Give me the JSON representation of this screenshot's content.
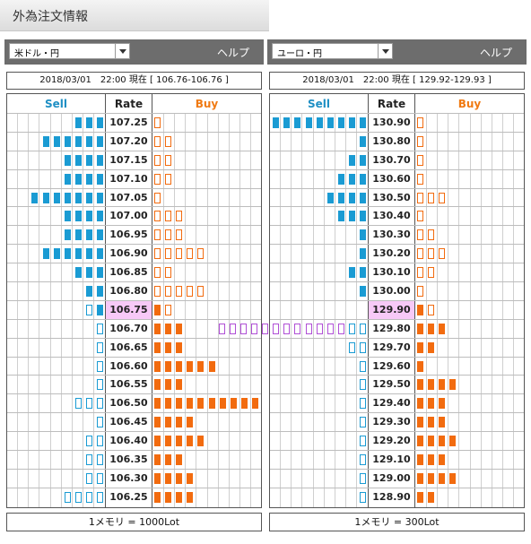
{
  "page": {
    "title": "外為注文情報"
  },
  "panels": [
    {
      "pair": "米ドル・円",
      "help": "ヘルプ",
      "info": "2018/03/01　22:00 現在 [ 106.76-106.76 ]",
      "headers": {
        "sell": "Sell",
        "rate": "Rate",
        "buy": "Buy"
      },
      "current_rate": "106.75",
      "rows": [
        {
          "rate": "107.25",
          "sell": 3,
          "sell_hollow": false,
          "buy": 1,
          "buy_hollow": true
        },
        {
          "rate": "107.20",
          "sell": 6,
          "sell_hollow": false,
          "buy": 2,
          "buy_hollow": true
        },
        {
          "rate": "107.15",
          "sell": 4,
          "sell_hollow": false,
          "buy": 2,
          "buy_hollow": true
        },
        {
          "rate": "107.10",
          "sell": 4,
          "sell_hollow": false,
          "buy": 2,
          "buy_hollow": true
        },
        {
          "rate": "107.05",
          "sell": 7,
          "sell_hollow": false,
          "buy": 1,
          "buy_hollow": true
        },
        {
          "rate": "107.00",
          "sell": 4,
          "sell_hollow": false,
          "buy": 3,
          "buy_hollow": true
        },
        {
          "rate": "106.95",
          "sell": 4,
          "sell_hollow": false,
          "buy": 3,
          "buy_hollow": true
        },
        {
          "rate": "106.90",
          "sell": 6,
          "sell_hollow": false,
          "buy": 5,
          "buy_hollow": true
        },
        {
          "rate": "106.85",
          "sell": 3,
          "sell_hollow": false,
          "buy": 2,
          "buy_hollow": true
        },
        {
          "rate": "106.80",
          "sell": 2,
          "sell_hollow": false,
          "buy": 5,
          "buy_hollow": true
        },
        {
          "rate": "106.75",
          "sell": 2,
          "sell_hollow": "mixed",
          "buy": 2,
          "buy_hollow": "mixed"
        },
        {
          "rate": "106.70",
          "sell": 1,
          "sell_hollow": true,
          "buy": 3,
          "buy_hollow": false
        },
        {
          "rate": "106.65",
          "sell": 1,
          "sell_hollow": true,
          "buy": 3,
          "buy_hollow": false
        },
        {
          "rate": "106.60",
          "sell": 1,
          "sell_hollow": true,
          "buy": 6,
          "buy_hollow": false
        },
        {
          "rate": "106.55",
          "sell": 1,
          "sell_hollow": true,
          "buy": 3,
          "buy_hollow": false
        },
        {
          "rate": "106.50",
          "sell": 3,
          "sell_hollow": true,
          "buy": 10,
          "buy_hollow": false
        },
        {
          "rate": "106.45",
          "sell": 1,
          "sell_hollow": true,
          "buy": 4,
          "buy_hollow": false
        },
        {
          "rate": "106.40",
          "sell": 2,
          "sell_hollow": true,
          "buy": 5,
          "buy_hollow": false
        },
        {
          "rate": "106.35",
          "sell": 2,
          "sell_hollow": true,
          "buy": 3,
          "buy_hollow": false
        },
        {
          "rate": "106.30",
          "sell": 2,
          "sell_hollow": true,
          "buy": 4,
          "buy_hollow": false
        },
        {
          "rate": "106.25",
          "sell": 4,
          "sell_hollow": true,
          "buy": 4,
          "buy_hollow": false
        }
      ],
      "footer": "1メモリ = 1000Lot"
    },
    {
      "pair": "ユーロ・円",
      "help": "ヘルプ",
      "info": "2018/03/01　22:00 現在 [ 129.92-129.93 ]",
      "headers": {
        "sell": "Sell",
        "rate": "Rate",
        "buy": "Buy"
      },
      "current_rate": "129.90",
      "rows": [
        {
          "rate": "130.90",
          "sell": 9,
          "sell_hollow": false,
          "buy": 1,
          "buy_hollow": true
        },
        {
          "rate": "130.80",
          "sell": 1,
          "sell_hollow": false,
          "buy": 1,
          "buy_hollow": true
        },
        {
          "rate": "130.70",
          "sell": 2,
          "sell_hollow": false,
          "buy": 1,
          "buy_hollow": true
        },
        {
          "rate": "130.60",
          "sell": 3,
          "sell_hollow": false,
          "buy": 1,
          "buy_hollow": true
        },
        {
          "rate": "130.50",
          "sell": 4,
          "sell_hollow": false,
          "buy": 3,
          "buy_hollow": true
        },
        {
          "rate": "130.40",
          "sell": 3,
          "sell_hollow": false,
          "buy": 1,
          "buy_hollow": true
        },
        {
          "rate": "130.30",
          "sell": 1,
          "sell_hollow": false,
          "buy": 2,
          "buy_hollow": true
        },
        {
          "rate": "130.20",
          "sell": 1,
          "sell_hollow": false,
          "buy": 3,
          "buy_hollow": true
        },
        {
          "rate": "130.10",
          "sell": 2,
          "sell_hollow": false,
          "buy": 2,
          "buy_hollow": true
        },
        {
          "rate": "130.00",
          "sell": 1,
          "sell_hollow": false,
          "buy": 1,
          "buy_hollow": true
        },
        {
          "rate": "129.90",
          "sell": 0,
          "sell_hollow": false,
          "buy": 2,
          "buy_hollow": "mixed"
        },
        {
          "rate": "129.80",
          "sell": 14,
          "sell_hollow": "purple",
          "buy": 3,
          "buy_hollow": false
        },
        {
          "rate": "129.70",
          "sell": 2,
          "sell_hollow": true,
          "buy": 2,
          "buy_hollow": false
        },
        {
          "rate": "129.60",
          "sell": 1,
          "sell_hollow": true,
          "buy": 1,
          "buy_hollow": false
        },
        {
          "rate": "129.50",
          "sell": 1,
          "sell_hollow": true,
          "buy": 4,
          "buy_hollow": false
        },
        {
          "rate": "129.40",
          "sell": 1,
          "sell_hollow": true,
          "buy": 3,
          "buy_hollow": false
        },
        {
          "rate": "129.30",
          "sell": 1,
          "sell_hollow": true,
          "buy": 3,
          "buy_hollow": false
        },
        {
          "rate": "129.20",
          "sell": 1,
          "sell_hollow": true,
          "buy": 4,
          "buy_hollow": false
        },
        {
          "rate": "129.10",
          "sell": 1,
          "sell_hollow": true,
          "buy": 3,
          "buy_hollow": false
        },
        {
          "rate": "129.00",
          "sell": 1,
          "sell_hollow": true,
          "buy": 4,
          "buy_hollow": false
        },
        {
          "rate": "128.90",
          "sell": 1,
          "sell_hollow": true,
          "buy": 2,
          "buy_hollow": false
        }
      ],
      "footer": "1メモリ = 300Lot"
    }
  ],
  "colors": {
    "sell": "#1a9bd3",
    "buy": "#f26b0f",
    "current_rate_bg": "#f7c9f7",
    "purple_outline": "#b04fd6",
    "header_bar": "#6d6d6d"
  },
  "icons": {
    "dropdown": "chevron-down-icon"
  }
}
